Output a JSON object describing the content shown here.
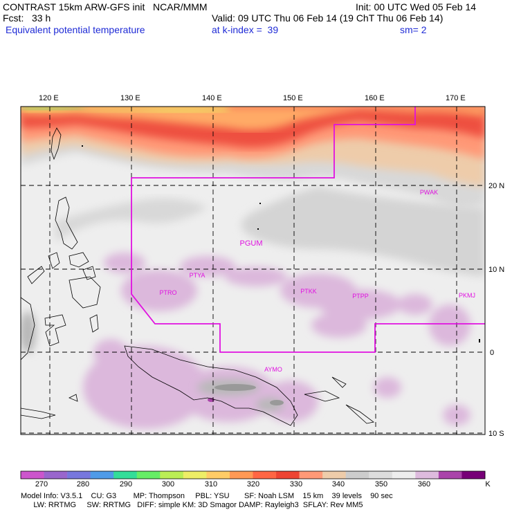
{
  "header": {
    "line1_left": "CONTRAST 15km ARW-GFS init   NCAR/MMM",
    "line1_right": "Init: 00 UTC Wed 05 Feb 14",
    "line2_left": "Fcst:   33 h",
    "line2_right": "Valid: 09 UTC Thu 06 Feb 14 (19 ChT Thu 06 Feb 14)",
    "line3_left": "Equivalent potential temperature",
    "line3_mid": "at k-index =  39",
    "line3_right": "sm= 2"
  },
  "axes": {
    "lon_labels": [
      "120 E",
      "130 E",
      "140 E",
      "150 E",
      "160 E",
      "170 E"
    ],
    "lat_labels": [
      "20 N",
      "10 N",
      "0",
      "10 S"
    ]
  },
  "stations": [
    {
      "name": "PWAK",
      "big": false
    },
    {
      "name": "PGUM",
      "big": true
    },
    {
      "name": "PTYA",
      "big": false
    },
    {
      "name": "PTRO",
      "big": false
    },
    {
      "name": "PTKK",
      "big": false
    },
    {
      "name": "PTPP",
      "big": false
    },
    {
      "name": "PKMJ",
      "big": false
    },
    {
      "name": "AYMO",
      "big": false
    }
  ],
  "colorbar": {
    "labels": [
      "270",
      "280",
      "290",
      "300",
      "310",
      "320",
      "330",
      "340",
      "350",
      "360"
    ],
    "unit": "K",
    "colors": [
      "#cc55cc",
      "#9966cc",
      "#7777dd",
      "#4f9be8",
      "#33dd99",
      "#66ee66",
      "#bbee55",
      "#eeee66",
      "#ffcc66",
      "#ff9955",
      "#ff6644",
      "#ee4433",
      "#ff9977",
      "#eeccaa",
      "#cccccc",
      "#dddddd",
      "#eeeeee",
      "#ddbbdd",
      "#aa44aa",
      "#770077"
    ]
  },
  "footer": {
    "line1": "Model Info: V3.5.1    CU: G3        MP: Thompson     PBL: YSU       SF: Noah LSM    15 km    39 levels    90 sec",
    "line2": "      LW: RRTMG     SW: RRTMG   DIFF: simple KM: 3D Smagor DAMP: Rayleigh3  SFLAY: Rev MM5"
  }
}
